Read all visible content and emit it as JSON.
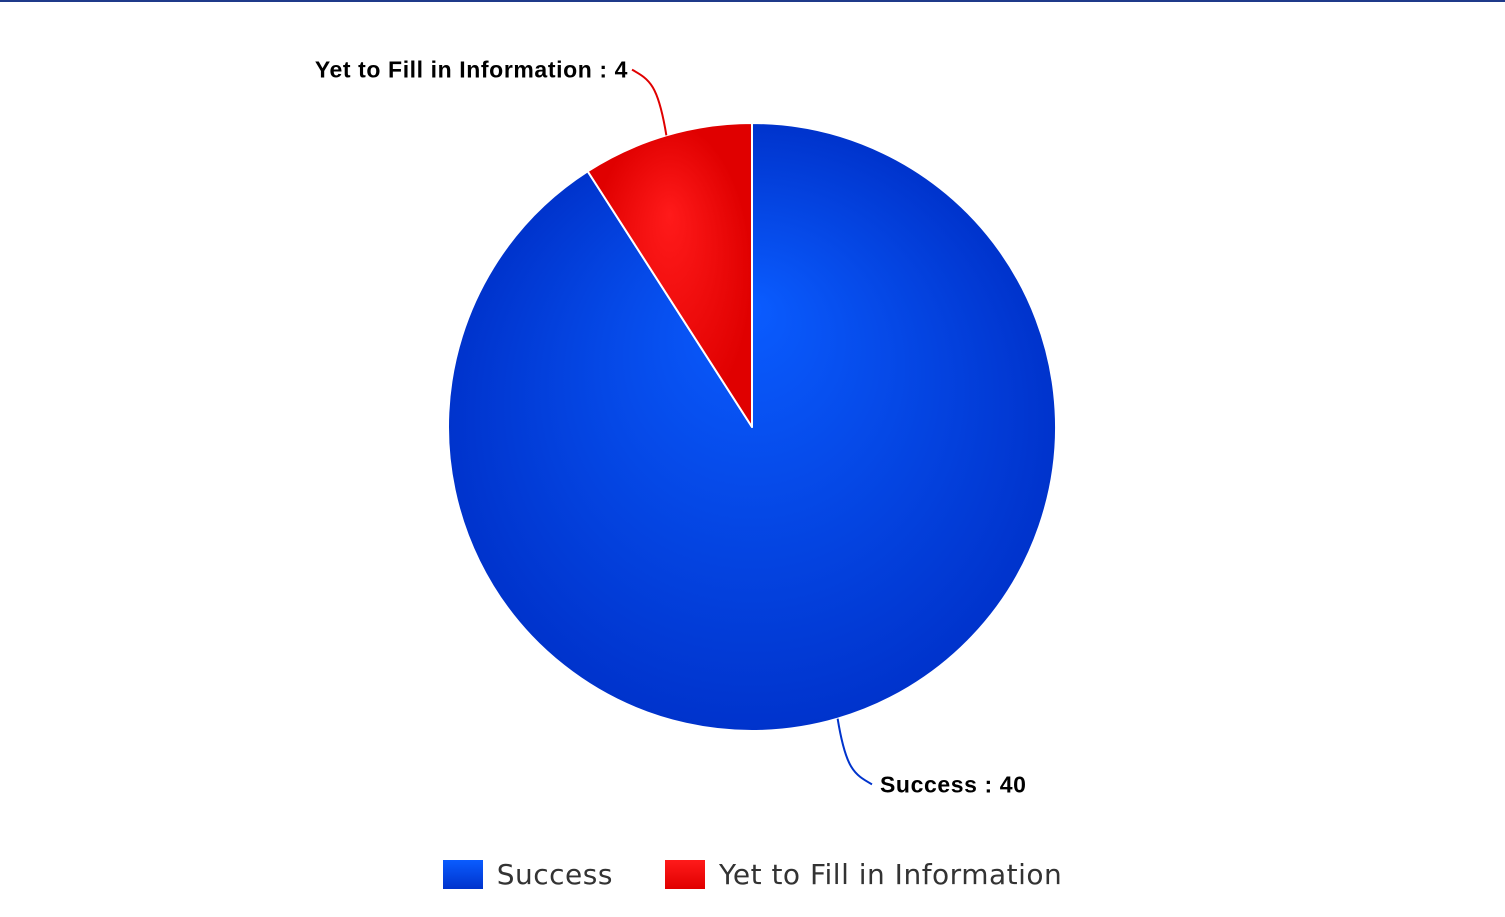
{
  "chart_data": {
    "type": "pie",
    "title": "",
    "start_angle_deg": 0,
    "direction": "clockwise",
    "slices": [
      {
        "name": "Success",
        "value": 40,
        "label": "Success : 40",
        "color": "#0033cc",
        "highlight": "#0a5cff"
      },
      {
        "name": "Yet to Fill in Information",
        "value": 4,
        "label": "Yet to Fill in Information : 4",
        "color": "#e00000",
        "highlight": "#ff1a1a"
      }
    ],
    "legend_position": "bottom-center"
  },
  "legend": {
    "items": [
      {
        "label": "Success",
        "color": "#0033cc"
      },
      {
        "label": "Yet to Fill in Information",
        "color": "#e00000"
      }
    ]
  }
}
